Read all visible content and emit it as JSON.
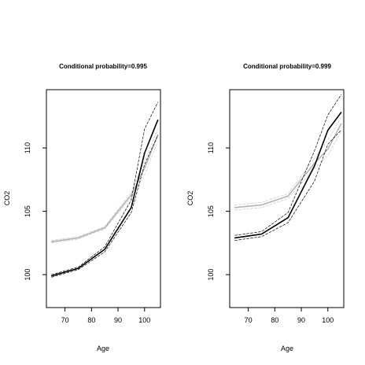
{
  "chart_data": [
    {
      "type": "line",
      "title": "Conditional probability=0.995",
      "xlabel": "Age",
      "ylabel": "CO2",
      "xlim": [
        63,
        106
      ],
      "ylim": [
        97.4,
        114.6
      ],
      "xticks": [
        70,
        80,
        90,
        100
      ],
      "yticks": [
        100,
        105,
        110
      ],
      "grid": false,
      "legend": "none",
      "series": [
        {
          "color": "#000000",
          "style": "solid",
          "width": 1.6,
          "x": [
            65,
            75,
            85,
            95,
            100,
            105
          ],
          "y": [
            99.9,
            100.5,
            102.0,
            105.3,
            109.6,
            112.2
          ]
        },
        {
          "color": "#000000",
          "style": "dashed",
          "width": 0.7,
          "x": [
            65,
            75,
            85,
            95,
            100,
            105
          ],
          "y": [
            100.0,
            100.6,
            102.2,
            105.9,
            111.5,
            113.6
          ]
        },
        {
          "color": "#000000",
          "style": "dashed",
          "width": 0.7,
          "x": [
            65,
            75,
            85,
            95,
            100,
            105
          ],
          "y": [
            99.8,
            100.4,
            101.8,
            104.9,
            108.7,
            111.0
          ]
        },
        {
          "color": "#b4b4b4",
          "style": "solid",
          "width": 1.6,
          "x": [
            65,
            75,
            85,
            95,
            100,
            105
          ],
          "y": [
            102.6,
            102.9,
            103.7,
            106.3,
            108.4,
            111.0
          ]
        },
        {
          "color": "#c8c8c8",
          "style": "dashed",
          "width": 0.7,
          "x": [
            65,
            75,
            85,
            95,
            100,
            105
          ],
          "y": [
            102.7,
            103.0,
            103.8,
            106.5,
            109.0,
            111.5
          ]
        },
        {
          "color": "#c8c8c8",
          "style": "dashed",
          "width": 0.7,
          "x": [
            65,
            75,
            85,
            95,
            100,
            105
          ],
          "y": [
            102.5,
            102.8,
            103.6,
            106.1,
            107.9,
            110.5
          ]
        }
      ]
    },
    {
      "type": "line",
      "title": "Conditional probability=0.999",
      "xlabel": "Age",
      "ylabel": "CO2",
      "xlim": [
        63,
        106
      ],
      "ylim": [
        97.4,
        114.6
      ],
      "xticks": [
        70,
        80,
        90,
        100
      ],
      "yticks": [
        100,
        105,
        110
      ],
      "grid": false,
      "legend": "none",
      "series": [
        {
          "color": "#000000",
          "style": "solid",
          "width": 1.6,
          "x": [
            65,
            75,
            85,
            95,
            100,
            105
          ],
          "y": [
            102.9,
            103.2,
            104.5,
            108.6,
            111.4,
            112.8
          ]
        },
        {
          "color": "#000000",
          "style": "dashed",
          "width": 0.7,
          "x": [
            65,
            75,
            85,
            95,
            100,
            105
          ],
          "y": [
            103.1,
            103.4,
            104.9,
            109.8,
            112.6,
            114.2
          ]
        },
        {
          "color": "#000000",
          "style": "dashed",
          "width": 0.7,
          "x": [
            65,
            75,
            85,
            95,
            100,
            105
          ],
          "y": [
            102.7,
            103.0,
            104.1,
            107.4,
            110.3,
            111.4
          ]
        },
        {
          "color": "#b4b4b4",
          "style": "solid",
          "width": 1.6,
          "x": [
            65,
            75,
            85,
            95,
            100,
            105
          ],
          "y": [
            105.3,
            105.5,
            106.2,
            108.8,
            109.9,
            111.9
          ]
        },
        {
          "color": "#c8c8c8",
          "style": "dashed",
          "width": 0.7,
          "x": [
            65,
            75,
            85,
            95,
            100,
            105
          ],
          "y": [
            105.5,
            105.7,
            106.4,
            109.2,
            110.6,
            112.4
          ]
        },
        {
          "color": "#c8c8c8",
          "style": "dashed",
          "width": 0.7,
          "x": [
            65,
            75,
            85,
            95,
            100,
            105
          ],
          "y": [
            105.1,
            105.3,
            106.0,
            108.4,
            109.4,
            111.3
          ]
        }
      ]
    }
  ]
}
